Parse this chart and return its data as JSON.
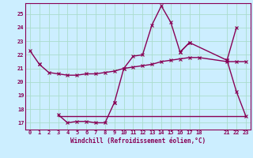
{
  "xlabel": "Windchill (Refroidissement éolien,°C)",
  "bg_color": "#cceeff",
  "grid_color": "#aaddcc",
  "line_color": "#880055",
  "xlim": [
    -0.5,
    23.5
  ],
  "ylim": [
    16.5,
    25.8
  ],
  "yticks": [
    17,
    18,
    19,
    20,
    21,
    22,
    23,
    24,
    25
  ],
  "x_ticks": [
    0,
    1,
    2,
    3,
    4,
    5,
    6,
    7,
    8,
    9,
    10,
    11,
    12,
    13,
    14,
    15,
    16,
    17,
    18,
    21,
    22,
    23
  ],
  "line1_x": [
    0,
    1
  ],
  "line1_y": [
    22.3,
    21.3
  ],
  "line2_x": [
    1,
    2,
    3
  ],
  "line2_y": [
    21.3,
    20.6,
    20.6
  ],
  "line3_x": [
    9,
    10,
    11,
    12,
    13,
    14,
    15,
    16,
    17
  ],
  "line3_y": [
    18.5,
    21.0,
    21.9,
    22.0,
    24.2,
    25.6,
    24.4,
    22.2,
    22.9
  ],
  "line4_x": [
    16,
    17,
    21,
    22
  ],
  "line4_y": [
    22.2,
    22.9,
    21.6,
    24.0
  ],
  "line5_x": [
    21,
    22,
    23
  ],
  "line5_y": [
    21.6,
    19.3,
    17.5
  ],
  "lowline_x": [
    3,
    4,
    5,
    6,
    7,
    8,
    9
  ],
  "lowline_y": [
    17.6,
    17.0,
    17.1,
    17.1,
    17.0,
    17.0,
    18.5
  ],
  "flatline_x": [
    3,
    4,
    5,
    6,
    7,
    8,
    9,
    10,
    11,
    12,
    13,
    14,
    15,
    16,
    17,
    18,
    21,
    22,
    23
  ],
  "flatline_y": [
    17.5,
    17.5,
    17.5,
    17.5,
    17.5,
    17.5,
    17.5,
    17.5,
    17.5,
    17.5,
    17.5,
    17.5,
    17.5,
    17.5,
    17.5,
    17.5,
    17.5,
    17.5,
    17.5
  ],
  "trendline_x": [
    1,
    2,
    3,
    4,
    5,
    6,
    7,
    8,
    9,
    10,
    11,
    12,
    13,
    14,
    15,
    16,
    17,
    18,
    21,
    22,
    23
  ],
  "trendline_y": [
    21.3,
    20.7,
    20.6,
    20.5,
    20.5,
    20.6,
    20.6,
    20.7,
    20.8,
    21.0,
    21.1,
    21.2,
    21.3,
    21.5,
    21.6,
    21.7,
    21.8,
    21.8,
    21.5,
    21.5,
    21.5
  ]
}
